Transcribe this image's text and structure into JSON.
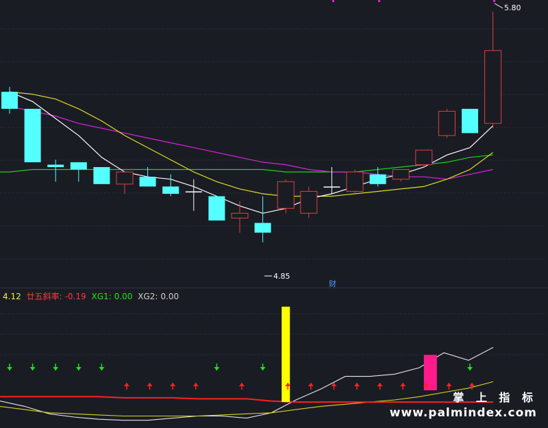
{
  "indicator_header": {
    "value": "4.12",
    "slope_label": "廿五斜率:",
    "slope_value": "-0.19",
    "xg1_label": "XG1:",
    "xg1_value": "0.00",
    "xg2_label": "XG2:",
    "xg2_value": "0.00"
  },
  "annotations": {
    "high_label": "5.80",
    "low_label": "4.85",
    "finance_marker": "财"
  },
  "watermark": {
    "brand_cn": "掌 上 指 标",
    "url": "www.palmindex.com"
  },
  "colors": {
    "background": "#1a1c24",
    "up_candle": "#e04040",
    "down_candle": "#54ffff",
    "ma5": "#ffffff",
    "ma10": "#e0e020",
    "ma20": "#e020e0",
    "ma60": "#20d020",
    "up_arrow": "#ff2020",
    "down_arrow": "#20e020",
    "yellow_bar": "#ffff00",
    "magenta_bar": "#ff1a8c"
  },
  "chart_data": [
    {
      "type": "candlestick",
      "price_range": [
        4.72,
        5.82
      ],
      "candles": [
        {
          "o": 5.47,
          "h": 5.49,
          "l": 5.38,
          "c": 5.4
        },
        {
          "o": 5.4,
          "h": 5.4,
          "l": 5.18,
          "c": 5.18
        },
        {
          "o": 5.17,
          "h": 5.19,
          "l": 5.1,
          "c": 5.16
        },
        {
          "o": 5.18,
          "h": 5.18,
          "l": 5.1,
          "c": 5.15
        },
        {
          "o": 5.16,
          "h": 5.16,
          "l": 5.09,
          "c": 5.09
        },
        {
          "o": 5.09,
          "h": 5.14,
          "l": 5.05,
          "c": 5.14
        },
        {
          "o": 5.12,
          "h": 5.16,
          "l": 5.08,
          "c": 5.08
        },
        {
          "o": 5.08,
          "h": 5.13,
          "l": 5.04,
          "c": 5.05
        },
        {
          "o": 5.06,
          "h": 5.11,
          "l": 4.98,
          "c": 5.06
        },
        {
          "o": 5.04,
          "h": 5.04,
          "l": 4.94,
          "c": 4.94
        },
        {
          "o": 4.95,
          "h": 5.02,
          "l": 4.89,
          "c": 4.97
        },
        {
          "o": 4.93,
          "h": 5.04,
          "l": 4.85,
          "c": 4.89
        },
        {
          "o": 4.99,
          "h": 5.11,
          "l": 4.97,
          "c": 5.1
        },
        {
          "o": 4.97,
          "h": 5.08,
          "l": 4.95,
          "c": 5.06
        },
        {
          "o": 5.08,
          "h": 5.16,
          "l": 5.05,
          "c": 5.08
        },
        {
          "o": 5.06,
          "h": 5.15,
          "l": 5.05,
          "c": 5.14
        },
        {
          "o": 5.13,
          "h": 5.16,
          "l": 5.08,
          "c": 5.09
        },
        {
          "o": 5.11,
          "h": 5.15,
          "l": 5.1,
          "c": 5.15
        },
        {
          "o": 5.17,
          "h": 5.23,
          "l": 5.16,
          "c": 5.23
        },
        {
          "o": 5.29,
          "h": 5.4,
          "l": 5.28,
          "c": 5.39
        },
        {
          "o": 5.4,
          "h": 5.4,
          "l": 5.3,
          "c": 5.3
        },
        {
          "o": 5.34,
          "h": 5.8,
          "l": 5.32,
          "c": 5.64
        }
      ],
      "ma5": [
        5.47,
        5.43,
        5.36,
        5.29,
        5.2,
        5.14,
        5.12,
        5.11,
        5.08,
        5.04,
        5.0,
        4.97,
        4.99,
        5.03,
        5.05,
        5.08,
        5.11,
        5.13,
        5.16,
        5.21,
        5.24,
        5.33
      ],
      "ma10": [
        5.47,
        5.46,
        5.44,
        5.4,
        5.35,
        5.29,
        5.24,
        5.19,
        5.14,
        5.1,
        5.07,
        5.05,
        5.04,
        5.04,
        5.04,
        5.05,
        5.06,
        5.07,
        5.08,
        5.11,
        5.15,
        5.22
      ],
      "ma20": [
        5.41,
        5.39,
        5.37,
        5.34,
        5.32,
        5.3,
        5.28,
        5.26,
        5.24,
        5.22,
        5.2,
        5.18,
        5.17,
        5.15,
        5.14,
        5.14,
        5.13,
        5.12,
        5.12,
        5.11,
        5.13,
        5.15
      ],
      "ma60": [
        5.14,
        5.15,
        5.15,
        5.15,
        5.15,
        5.15,
        5.15,
        5.15,
        5.15,
        5.15,
        5.15,
        5.15,
        5.14,
        5.14,
        5.14,
        5.14,
        5.15,
        5.16,
        5.17,
        5.18,
        5.2,
        5.21
      ]
    },
    {
      "type": "line",
      "y_range": [
        -20,
        95
      ],
      "white_line": [
        2,
        -3,
        -10,
        -13,
        -15,
        -16,
        -16,
        -14,
        -12,
        -12,
        -14,
        -9,
        3,
        13,
        25,
        25,
        27,
        33,
        47,
        40,
        52
      ],
      "yellow_line": [
        -3,
        -6,
        -9,
        -10,
        -11,
        -12,
        -12,
        -12,
        -12,
        -11,
        -10,
        -9,
        -6,
        -3,
        -1,
        1,
        3,
        6,
        10,
        14,
        20
      ],
      "red_line": [
        6,
        6,
        6,
        6,
        6,
        5,
        5,
        5,
        4,
        4,
        4,
        2,
        1,
        1,
        1,
        1,
        1,
        1,
        1,
        1,
        1
      ],
      "yellow_bar": {
        "index": 12,
        "top": 90
      },
      "magenta_bar": {
        "index": 18,
        "top": 45,
        "bottom": 12
      },
      "down_arrows": [
        0,
        1,
        2,
        3,
        4,
        9,
        11,
        20
      ],
      "up_arrows": [
        5,
        6,
        7,
        8,
        10,
        12,
        13,
        14,
        15,
        16,
        17,
        18,
        19,
        20
      ]
    }
  ]
}
